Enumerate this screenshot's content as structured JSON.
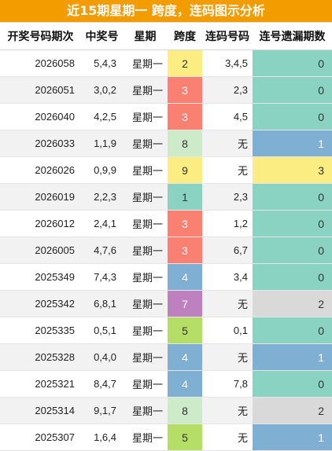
{
  "title": "近15期星期一 跨度，连码图示分析",
  "headers": [
    "开奖号码期次",
    "中奖号",
    "星期",
    "跨度",
    "连码号码",
    "连号遗漏期数"
  ],
  "rows": [
    {
      "period": "2026058",
      "nums": "5,4,3",
      "week": "星期一",
      "span": "2",
      "span_color": "yellow",
      "link": "3,4,5",
      "miss": "0",
      "miss_color": "teal"
    },
    {
      "period": "2026051",
      "nums": "3,0,2",
      "week": "星期一",
      "span": "3",
      "span_color": "red",
      "link": "2,3",
      "miss": "0",
      "miss_color": "teal"
    },
    {
      "period": "2026040",
      "nums": "4,2,5",
      "week": "星期一",
      "span": "3",
      "span_color": "red",
      "link": "4,5",
      "miss": "0",
      "miss_color": "teal"
    },
    {
      "period": "2026033",
      "nums": "1,1,9",
      "week": "星期一",
      "span": "8",
      "span_color": "lgreen",
      "link": "无",
      "miss": "1",
      "miss_color": "blue"
    },
    {
      "period": "2026026",
      "nums": "0,9,9",
      "week": "星期一",
      "span": "9",
      "span_color": "yellow",
      "link": "无",
      "miss": "3",
      "miss_color": "yellow"
    },
    {
      "period": "2026019",
      "nums": "2,2,3",
      "week": "星期一",
      "span": "1",
      "span_color": "teal",
      "link": "2,3",
      "miss": "0",
      "miss_color": "teal"
    },
    {
      "period": "2026012",
      "nums": "2,4,1",
      "week": "星期一",
      "span": "3",
      "span_color": "red",
      "link": "1,2",
      "miss": "0",
      "miss_color": "teal"
    },
    {
      "period": "2026005",
      "nums": "4,7,6",
      "week": "星期一",
      "span": "3",
      "span_color": "red",
      "link": "6,7",
      "miss": "0",
      "miss_color": "teal"
    },
    {
      "period": "2025349",
      "nums": "7,4,3",
      "week": "星期一",
      "span": "4",
      "span_color": "blue",
      "link": "3,4",
      "miss": "0",
      "miss_color": "teal"
    },
    {
      "period": "2025342",
      "nums": "6,8,1",
      "week": "星期一",
      "span": "7",
      "span_color": "purple",
      "link": "无",
      "miss": "2",
      "miss_color": "gray"
    },
    {
      "period": "2025335",
      "nums": "0,5,1",
      "week": "星期一",
      "span": "5",
      "span_color": "green",
      "link": "0,1",
      "miss": "0",
      "miss_color": "teal"
    },
    {
      "period": "2025328",
      "nums": "0,4,0",
      "week": "星期一",
      "span": "4",
      "span_color": "blue",
      "link": "无",
      "miss": "1",
      "miss_color": "blue"
    },
    {
      "period": "2025321",
      "nums": "8,4,7",
      "week": "星期一",
      "span": "4",
      "span_color": "blue",
      "link": "7,8",
      "miss": "0",
      "miss_color": "teal"
    },
    {
      "period": "2025314",
      "nums": "9,1,7",
      "week": "星期一",
      "span": "8",
      "span_color": "lgreen",
      "link": "无",
      "miss": "2",
      "miss_color": "gray"
    },
    {
      "period": "2025307",
      "nums": "1,6,4",
      "week": "星期一",
      "span": "5",
      "span_color": "green",
      "link": "无",
      "miss": "1",
      "miss_color": "blue"
    }
  ]
}
